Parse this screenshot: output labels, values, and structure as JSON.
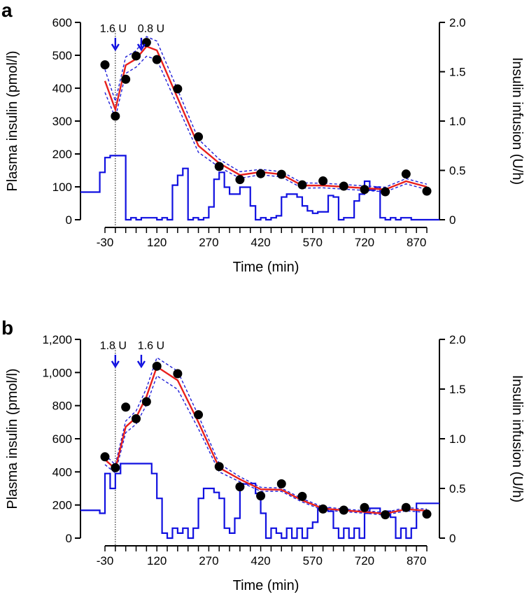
{
  "chart_data": [
    {
      "panel": "a",
      "type": "line",
      "xlabel": "Time (min)",
      "ylabel": "Plasma insulin (pmol/l)",
      "y2label": "Insulin infusion (U/h)",
      "xlim": [
        -30,
        900
      ],
      "ylim": [
        0,
        600
      ],
      "y2lim": [
        0,
        2.0
      ],
      "x_ticks": [
        "-30",
        "120",
        "270",
        "420",
        "570",
        "720",
        "870"
      ],
      "x_tick_values": [
        -30,
        120,
        270,
        420,
        570,
        720,
        870
      ],
      "y_ticks": [
        "0",
        "100",
        "200",
        "300",
        "400",
        "500",
        "600"
      ],
      "y_tick_values": [
        0,
        100,
        200,
        300,
        400,
        500,
        600
      ],
      "y2_ticks": [
        "0",
        "0.5",
        "1.0",
        "1.5",
        "2.0"
      ],
      "y2_tick_values": [
        0,
        0.5,
        1.0,
        1.5,
        2.0
      ],
      "doses": [
        {
          "label": "1.6 U",
          "time": 0
        },
        {
          "label": "0.8 U",
          "time": 75
        }
      ],
      "times": [
        -30,
        0,
        30,
        60,
        90,
        120,
        180,
        240,
        300,
        360,
        420,
        480,
        540,
        600,
        660,
        720,
        780,
        840,
        900
      ],
      "series": [
        {
          "name": "Observed plasma insulin",
          "style": "points",
          "values": [
            471,
            315,
            427,
            498,
            539,
            487,
            398,
            252,
            162,
            122,
            140,
            138,
            106,
            118,
            102,
            92,
            85,
            139,
            87
          ]
        },
        {
          "name": "Model fit",
          "style": "line",
          "color": "#e8201c",
          "values": [
            422,
            335,
            470,
            489,
            527,
            515,
            370,
            225,
            172,
            136,
            145,
            138,
            104,
            104,
            100,
            96,
            92,
            117,
            100
          ]
        },
        {
          "name": "Confidence band half-width",
          "style": "dashed",
          "color": "#1f1fd8",
          "values": [
            35,
            25,
            25,
            25,
            30,
            28,
            25,
            20,
            12,
            10,
            8,
            8,
            8,
            7,
            7,
            7,
            7,
            8,
            8
          ]
        }
      ],
      "infusion": {
        "color": "#1010e0",
        "baseline_before": 0.28,
        "start_time": -45,
        "step_minutes": 15,
        "values": [
          0.48,
          0.63,
          0.65,
          0.65,
          0.65,
          0,
          0.02,
          0,
          0.02,
          0.02,
          0.02,
          0,
          0.02,
          0,
          0.35,
          0.45,
          0.52,
          0,
          0.02,
          0,
          0.02,
          0.13,
          0.41,
          0.48,
          0.33,
          0.26,
          0.26,
          0.33,
          0.33,
          0.14,
          0,
          0.02,
          0,
          0.02,
          0.04,
          0.23,
          0.26,
          0.26,
          0.23,
          0.14,
          0.09,
          0.065,
          0.08,
          0.08,
          0.245,
          0.23,
          0,
          0.02,
          0.02,
          0.19,
          0.26,
          0.39,
          0.3,
          0.33,
          0.02,
          0,
          0.02,
          0,
          0.02,
          0.02
        ],
        "value_after": 0
      }
    },
    {
      "panel": "b",
      "type": "line",
      "xlabel": "Time (min)",
      "ylabel": "Plasma insulin (pmol/l)",
      "y2label": "Insulin infusion (U/h)",
      "xlim": [
        -30,
        900
      ],
      "ylim": [
        0,
        1200
      ],
      "y2lim": [
        0,
        2.0
      ],
      "x_ticks": [
        "-30",
        "120",
        "270",
        "420",
        "570",
        "720",
        "870"
      ],
      "x_tick_values": [
        -30,
        120,
        270,
        420,
        570,
        720,
        870
      ],
      "y_ticks": [
        "0",
        "200",
        "400",
        "600",
        "800",
        "1,000",
        "1,200"
      ],
      "y_tick_values": [
        0,
        200,
        400,
        600,
        800,
        1000,
        1200
      ],
      "y2_ticks": [
        "0",
        "0.5",
        "1.0",
        "1.5",
        "2.0"
      ],
      "y2_tick_values": [
        0,
        0.5,
        1.0,
        1.5,
        2.0
      ],
      "doses": [
        {
          "label": "1.8 U",
          "time": 0
        },
        {
          "label": "1.6 U",
          "time": 75
        }
      ],
      "times": [
        -30,
        0,
        30,
        60,
        90,
        120,
        180,
        240,
        300,
        360,
        420,
        480,
        540,
        600,
        660,
        720,
        780,
        840,
        900
      ],
      "series": [
        {
          "name": "Observed plasma insulin",
          "style": "points",
          "values": [
            491,
            425,
            791,
            721,
            824,
            1038,
            993,
            745,
            432,
            310,
            255,
            328,
            252,
            176,
            169,
            185,
            141,
            185,
            145
          ]
        },
        {
          "name": "Model fit",
          "style": "line",
          "color": "#e8201c",
          "values": [
            474,
            418,
            672,
            728,
            855,
            1035,
            953,
            700,
            425,
            355,
            295,
            292,
            228,
            179,
            168,
            158,
            147,
            175,
            165
          ]
        },
        {
          "name": "Confidence band half-width",
          "style": "dashed",
          "color": "#1f1fd8",
          "values": [
            30,
            25,
            35,
            40,
            50,
            55,
            55,
            40,
            25,
            15,
            12,
            10,
            10,
            10,
            8,
            8,
            8,
            10,
            10
          ]
        }
      ],
      "infusion": {
        "color": "#1010e0",
        "baseline_before": 0.28,
        "start_time": -45,
        "step_minutes": 15,
        "values": [
          0.25,
          0.65,
          0.5,
          0.65,
          0.75,
          0.75,
          0.75,
          0.75,
          0.75,
          0.75,
          0.65,
          0.4,
          0.05,
          0,
          0.1,
          0.05,
          0.1,
          0,
          0.1,
          0.4,
          0.5,
          0.5,
          0.46,
          0.4,
          0.1,
          0.05,
          0.2,
          0.545,
          0.545,
          0.55,
          0.45,
          0.25,
          0,
          0.1,
          0.05,
          0,
          0.1,
          0,
          0.1,
          0,
          0.1,
          0.16,
          0.3,
          0.3,
          0.27,
          0.1,
          0,
          0.1,
          0,
          0.1,
          0,
          0.25,
          0.3,
          0.3,
          0.25,
          0.27,
          0.21,
          0,
          0.1,
          0,
          0.1
        ],
        "value_after": 0.35
      }
    }
  ]
}
